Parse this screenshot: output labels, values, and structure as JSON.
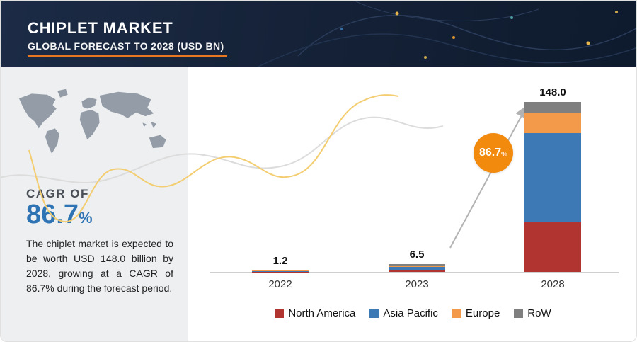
{
  "header": {
    "title": "CHIPLET MARKET",
    "subtitle": "GLOBAL FORECAST TO 2028 (USD BN)"
  },
  "panel": {
    "cagr_label": "CAGR OF",
    "cagr_value": "86.7",
    "cagr_unit": "%",
    "description": "The chiplet market is expected to be worth USD 148.0 billion by 2028, growing at a CAGR of 86.7% during the forecast period."
  },
  "chart_data": {
    "type": "bar",
    "stacked": true,
    "categories": [
      "2022",
      "2023",
      "2028"
    ],
    "totals": [
      1.2,
      6.5,
      148.0
    ],
    "total_labels": [
      "1.2",
      "6.5",
      "148.0"
    ],
    "series": [
      {
        "name": "North America",
        "color": "#b23430",
        "values": [
          0.2,
          2.0,
          43.0
        ]
      },
      {
        "name": "Asia Pacific",
        "color": "#3d79b4",
        "values": [
          0.7,
          2.5,
          78.0
        ]
      },
      {
        "name": "Europe",
        "color": "#f2994a",
        "values": [
          0.2,
          1.2,
          17.0
        ]
      },
      {
        "name": "RoW",
        "color": "#7f7f7f",
        "values": [
          0.1,
          0.8,
          10.0
        ]
      }
    ],
    "ylim": [
      0,
      148
    ],
    "legend_position": "bottom",
    "growth_annotation": {
      "value": "86.7",
      "unit": "%"
    }
  },
  "colors": {
    "header_bg": "#16233e",
    "accent_orange": "#e87722",
    "badge_orange": "#f28a0e",
    "cagr_blue": "#2e74b5",
    "panel_bg": "#edeff1",
    "map_gray": "#939ca7"
  }
}
